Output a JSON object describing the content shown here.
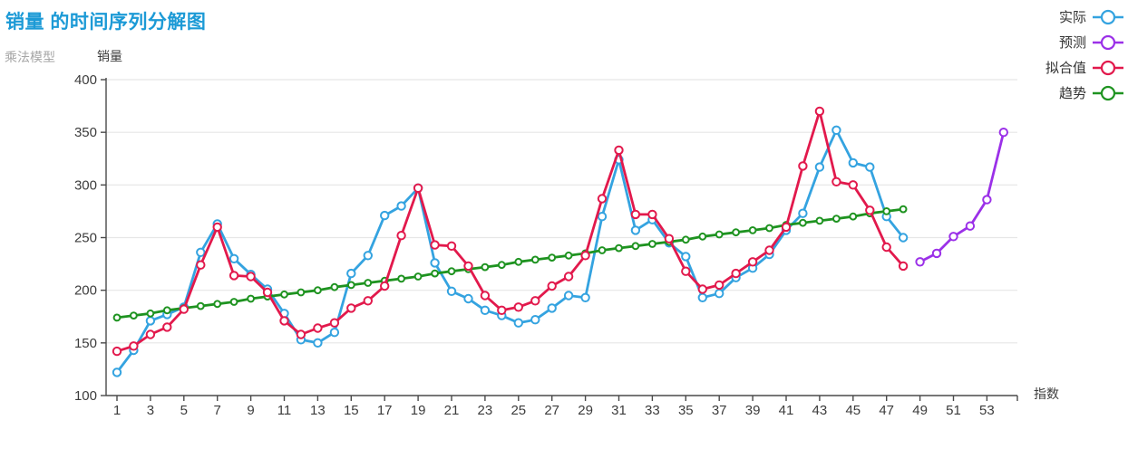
{
  "title": "销量 的时间序列分解图",
  "subtitle": "乘法模型",
  "colors": {
    "actual": "#34a3e0",
    "forecast": "#9b30e8",
    "fits": "#e2194c",
    "trend": "#1e9320",
    "title": "#1c9ad6",
    "subtitle": "#a6a6a6",
    "axis_line": "#4a4a4a",
    "grid": "#e6e6e6",
    "tick_text": "#3c3c3c"
  },
  "legend": [
    {
      "label": "实际",
      "series": "actual",
      "color": "#34a3e0"
    },
    {
      "label": "预测",
      "series": "forecast",
      "color": "#9b30e8"
    },
    {
      "label": "拟合值",
      "series": "fits",
      "color": "#e2194c"
    },
    {
      "label": "趋势",
      "series": "trend",
      "color": "#1e9320"
    }
  ],
  "chart_data": {
    "type": "line",
    "title": "销量 的时间序列分解图",
    "subtitle": "乘法模型",
    "xlabel": "指数",
    "ylabel": "销量",
    "ylim": [
      100,
      400
    ],
    "xlim": [
      1,
      54
    ],
    "grid": true,
    "legend_position": "top-right",
    "yticks": [
      100,
      150,
      200,
      250,
      300,
      350,
      400
    ],
    "xticks": [
      1,
      3,
      5,
      7,
      9,
      11,
      13,
      15,
      17,
      19,
      21,
      23,
      25,
      27,
      29,
      31,
      33,
      35,
      37,
      39,
      41,
      43,
      45,
      47,
      49,
      51,
      53
    ],
    "series": [
      {
        "name": "实际",
        "key": "actual",
        "color": "#34a3e0",
        "marker": "circle",
        "x_start": 1,
        "values": [
          122,
          143,
          171,
          177,
          184,
          236,
          263,
          230,
          215,
          201,
          178,
          153,
          150,
          160,
          216,
          233,
          271,
          280,
          297,
          226,
          199,
          192,
          181,
          176,
          169,
          172,
          183,
          195,
          193,
          270,
          324,
          257,
          267,
          245,
          232,
          193,
          197,
          212,
          221,
          234,
          257,
          273,
          317,
          352,
          321,
          317,
          270,
          250
        ]
      },
      {
        "name": "预测",
        "key": "forecast",
        "color": "#9b30e8",
        "marker": "circle",
        "x_start": 49,
        "values": [
          227,
          235,
          251,
          261,
          286,
          350
        ]
      },
      {
        "name": "趋势",
        "key": "trend",
        "color": "#1e9320",
        "marker": "circle",
        "x_start": 1,
        "values": [
          174,
          176,
          178,
          181,
          183,
          185,
          187,
          189,
          192,
          194,
          196,
          198,
          200,
          203,
          205,
          207,
          209,
          211,
          213,
          216,
          218,
          220,
          222,
          224,
          227,
          229,
          231,
          233,
          235,
          238,
          240,
          242,
          244,
          246,
          248,
          251,
          253,
          255,
          257,
          259,
          262,
          264,
          266,
          268,
          270,
          273,
          275,
          277
        ]
      },
      {
        "name": "拟合值",
        "key": "fits",
        "color": "#e2194c",
        "marker": "circle",
        "x_start": 1,
        "values": [
          142,
          147,
          158,
          165,
          182,
          224,
          260,
          214,
          213,
          198,
          171,
          158,
          164,
          169,
          183,
          190,
          204,
          252,
          297,
          243,
          242,
          223,
          195,
          181,
          184,
          190,
          204,
          213,
          233,
          287,
          333,
          272,
          272,
          249,
          218,
          201,
          205,
          216,
          227,
          238,
          260,
          318,
          370,
          303,
          300,
          276,
          241,
          223
        ]
      }
    ]
  }
}
